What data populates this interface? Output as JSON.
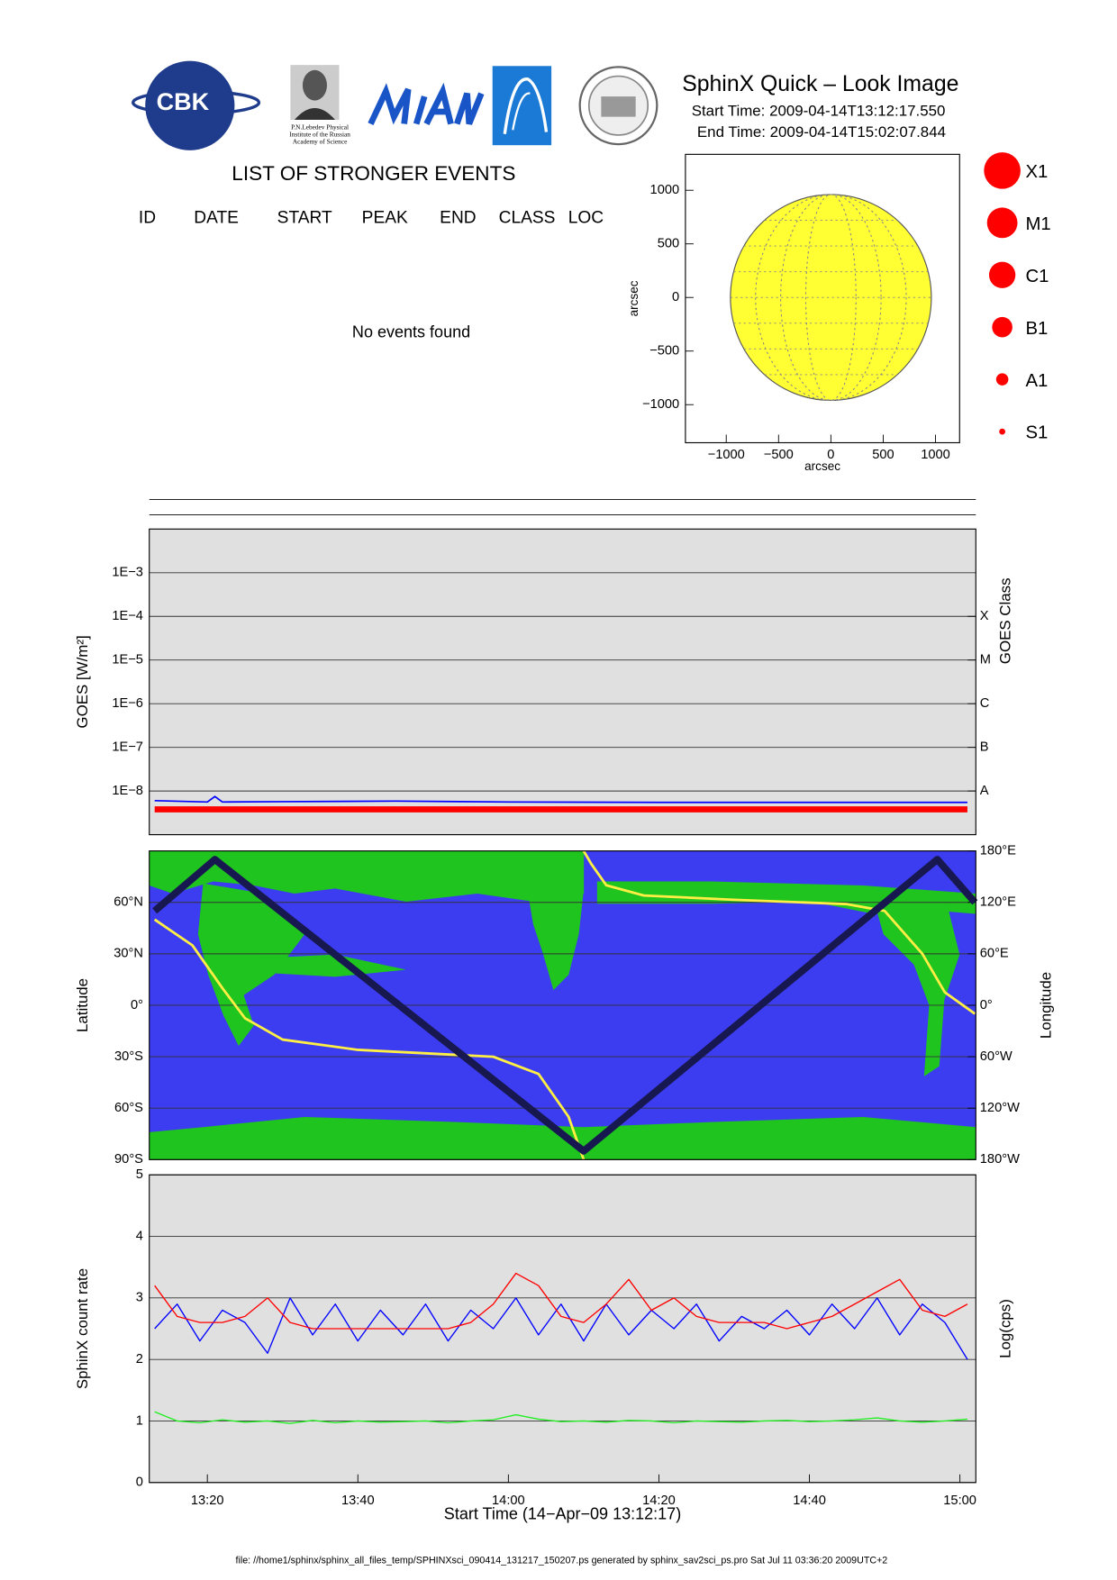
{
  "header": {
    "title": "SphinX Quick – Look Image",
    "start_time": "Start Time: 2009-04-14T13:12:17.550",
    "end_time": "End Time: 2009-04-14T15:02:07.844",
    "logo_cbk": "CBK",
    "logo_lebedev": [
      "P.N.Lebedev Physical",
      "Institute of the Russian",
      "Academy of Science"
    ]
  },
  "events": {
    "title": "LIST OF STRONGER EVENTS",
    "columns": [
      "ID",
      "DATE",
      "START",
      "PEAK",
      "END",
      "CLASS",
      "LOC"
    ],
    "message": "No events found"
  },
  "flare_size_legend": [
    "X1",
    "M1",
    "C1",
    "B1",
    "A1",
    "S1"
  ],
  "footer": "file: //home1/sphinx/sphinx_all_files_temp/SPHINXsci_090414_131217_150207.ps generated by sphinx_sav2sci_ps.pro Sat Jul 11 03:36:20 2009UTC+2",
  "chart_data": [
    {
      "type": "disk",
      "xlabel": "arcsec",
      "ylabel": "arcsec",
      "xlim": [
        -1390,
        1230
      ],
      "ylim": [
        -1355,
        1335
      ],
      "xticks": [
        {
          "value": -1000,
          "label": "−1000"
        },
        {
          "value": -500,
          "label": "−500"
        },
        0,
        500,
        1000
      ],
      "yticks": [
        {
          "value": -1000,
          "label": "−1000"
        },
        {
          "value": -500,
          "label": "−500"
        },
        0,
        500,
        1000
      ],
      "disk_radius": 960,
      "color": "#ffff33"
    },
    {
      "type": "line",
      "ylabel": "GOES [W/m²]",
      "y2label": "GOES Class",
      "log_scale": true,
      "grid": true,
      "xlim": [
        "13:12:17",
        "15:02:07"
      ],
      "ylim": [
        1e-09,
        0.01
      ],
      "yticks": [
        {
          "value": 1e-08,
          "label": "1E−8"
        },
        {
          "value": 1e-07,
          "label": "1E−7"
        },
        {
          "value": 1e-06,
          "label": "1E−6"
        },
        {
          "value": 1e-05,
          "label": "1E−5"
        },
        {
          "value": 0.0001,
          "label": "1E−4"
        },
        {
          "value": 0.001,
          "label": "1E−3"
        }
      ],
      "y2lim": [
        1e-09,
        0.01
      ],
      "y2ticks": [
        {
          "value": 1e-08,
          "label": "A"
        },
        {
          "value": 1e-07,
          "label": "B"
        },
        {
          "value": 1e-06,
          "label": "C"
        },
        {
          "value": 1e-05,
          "label": "M"
        },
        {
          "value": 0.0001,
          "label": "X"
        }
      ],
      "series": [
        {
          "color": "#ff0000",
          "width": 6,
          "x": [
            "13:13",
            "15:01"
          ],
          "values": [
            3.8e-09,
            3.8e-09
          ]
        },
        {
          "color": "#0000ff",
          "width": 1.5,
          "x": [
            "13:13",
            "13:20",
            "13:21",
            "13:22",
            "13:30",
            "13:45",
            "14:00",
            "14:20",
            "14:40",
            "15:01"
          ],
          "values": [
            6e-09,
            5.6e-09,
            7.5e-09,
            5.6e-09,
            5.7e-09,
            5.9e-09,
            5.6e-09,
            5.5e-09,
            5.5e-09,
            5.5e-09
          ]
        }
      ]
    },
    {
      "type": "line",
      "ylabel": "Latitude",
      "y2label": "Longitude",
      "grid": true,
      "xlim": [
        "13:12:17",
        "15:02:07"
      ],
      "ylim": [
        -90,
        90
      ],
      "yticks": [
        {
          "value": -90,
          "label": "90°S"
        },
        {
          "value": -60,
          "label": "60°S"
        },
        {
          "value": -30,
          "label": "30°S"
        },
        {
          "value": 0,
          "label": "0°"
        },
        {
          "value": 30,
          "label": "30°N"
        },
        {
          "value": 60,
          "label": "60°N"
        }
      ],
      "y2lim": [
        -180,
        180
      ],
      "y2ticks": [
        {
          "value": -180,
          "label": "180°W"
        },
        {
          "value": -120,
          "label": "120°W"
        },
        {
          "value": -60,
          "label": "60°W"
        },
        {
          "value": 0,
          "label": "0°"
        },
        {
          "value": 60,
          "label": "60°E"
        },
        {
          "value": 120,
          "label": "120°E"
        },
        {
          "value": 180,
          "label": "180°E"
        }
      ],
      "series": [
        {
          "color": "#ffee44",
          "width": 2.5,
          "axis": "y2",
          "x": [
            "13:13",
            "13:18",
            "13:22",
            "13:25",
            "13:30",
            "13:40",
            "13:58",
            "14:04",
            "14:08",
            "14:10",
            "14:10",
            "14:10",
            "14:11",
            "14:13",
            "14:18",
            "14:30",
            "14:45",
            "14:50",
            "14:55",
            "14:58",
            "15:02"
          ],
          "values": [
            100,
            70,
            20,
            -15,
            -40,
            -52,
            -60,
            -80,
            -130,
            -180,
            null,
            180,
            165,
            140,
            128,
            123,
            118,
            110,
            60,
            15,
            -10
          ]
        },
        {
          "color": "#181850",
          "width": 7,
          "x": [
            "13:13",
            "13:21",
            "14:10",
            "14:57",
            "15:02"
          ],
          "values": [
            55,
            85,
            -85,
            85,
            60
          ]
        }
      ]
    },
    {
      "type": "line",
      "xlabel": "Start Time (14−Apr−09 13:12:17)",
      "ylabel": "SphinX count rate",
      "y2label": "Log(cps)",
      "grid": true,
      "xlim": [
        "13:12:17",
        "15:02:07"
      ],
      "xticks": [
        "13:20",
        "13:40",
        "14:00",
        "14:20",
        "14:40",
        "15:00"
      ],
      "ylim": [
        0,
        5
      ],
      "yticks": [
        0,
        1,
        2,
        3,
        4,
        5
      ],
      "series": [
        {
          "color": "#0000ff",
          "width": 1.2,
          "x": [
            "13:13",
            "13:16",
            "13:19",
            "13:22",
            "13:25",
            "13:28",
            "13:31",
            "13:34",
            "13:37",
            "13:40",
            "13:43",
            "13:46",
            "13:49",
            "13:52",
            "13:55",
            "13:58",
            "14:01",
            "14:04",
            "14:07",
            "14:10",
            "14:13",
            "14:16",
            "14:19",
            "14:22",
            "14:25",
            "14:28",
            "14:31",
            "14:34",
            "14:37",
            "14:40",
            "14:43",
            "14:46",
            "14:49",
            "14:52",
            "14:55",
            "14:58",
            "15:01"
          ],
          "values": [
            2.5,
            2.9,
            2.3,
            2.8,
            2.6,
            2.1,
            3.0,
            2.4,
            2.9,
            2.3,
            2.8,
            2.4,
            2.9,
            2.3,
            2.8,
            2.5,
            3.0,
            2.4,
            2.9,
            2.3,
            2.9,
            2.4,
            2.8,
            2.5,
            2.9,
            2.3,
            2.7,
            2.5,
            2.8,
            2.4,
            2.9,
            2.5,
            3.0,
            2.4,
            2.9,
            2.6,
            2.0
          ]
        },
        {
          "color": "#ff0000",
          "width": 1.2,
          "x": [
            "13:13",
            "13:16",
            "13:19",
            "13:22",
            "13:25",
            "13:28",
            "13:31",
            "13:34",
            "13:37",
            "13:40",
            "13:43",
            "13:46",
            "13:49",
            "13:52",
            "13:55",
            "13:58",
            "14:01",
            "14:04",
            "14:07",
            "14:10",
            "14:13",
            "14:16",
            "14:19",
            "14:22",
            "14:25",
            "14:28",
            "14:31",
            "14:34",
            "14:37",
            "14:40",
            "14:43",
            "14:46",
            "14:49",
            "14:52",
            "14:55",
            "14:58",
            "15:01"
          ],
          "values": [
            3.2,
            2.7,
            2.6,
            2.6,
            2.7,
            3.0,
            2.6,
            2.5,
            2.5,
            2.5,
            2.5,
            2.5,
            2.5,
            2.5,
            2.6,
            2.9,
            3.4,
            3.2,
            2.7,
            2.6,
            2.9,
            3.3,
            2.8,
            3.0,
            2.7,
            2.6,
            2.6,
            2.6,
            2.5,
            2.6,
            2.7,
            2.9,
            3.1,
            3.3,
            2.8,
            2.7,
            2.9
          ]
        },
        {
          "color": "#22ee22",
          "width": 1.2,
          "x": [
            "13:13",
            "13:16",
            "13:19",
            "13:22",
            "13:25",
            "13:28",
            "13:31",
            "13:34",
            "13:37",
            "13:40",
            "13:43",
            "13:46",
            "13:49",
            "13:52",
            "13:55",
            "13:58",
            "14:01",
            "14:04",
            "14:07",
            "14:10",
            "14:13",
            "14:16",
            "14:19",
            "14:22",
            "14:25",
            "14:28",
            "14:31",
            "14:34",
            "14:37",
            "14:40",
            "14:43",
            "14:46",
            "14:49",
            "14:52",
            "14:55",
            "14:58",
            "15:01"
          ],
          "values": [
            1.15,
            1.0,
            0.97,
            1.02,
            0.98,
            1.0,
            0.96,
            1.01,
            0.97,
            1.0,
            0.98,
            0.99,
            1.0,
            0.97,
            1.0,
            1.02,
            1.1,
            1.03,
            0.99,
            1.0,
            0.98,
            1.01,
            1.0,
            0.97,
            1.0,
            0.99,
            0.98,
            1.0,
            1.01,
            0.99,
            1.0,
            1.02,
            1.05,
            1.0,
            0.98,
            1.0,
            1.03
          ]
        }
      ]
    }
  ]
}
